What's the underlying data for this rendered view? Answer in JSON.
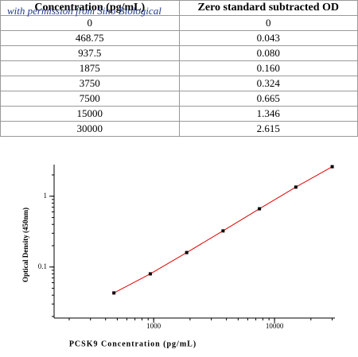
{
  "watermark": "with permission from Sino Biological",
  "table": {
    "header": [
      "Concentration (pg/mL)",
      "Zero standard subtracted OD"
    ],
    "rows": [
      [
        "0",
        "0"
      ],
      [
        "468.75",
        "0.043"
      ],
      [
        "937.5",
        "0.080"
      ],
      [
        "1875",
        "0.160"
      ],
      [
        "3750",
        "0.324"
      ],
      [
        "7500",
        "0.665"
      ],
      [
        "15000",
        "1.346"
      ],
      [
        "30000",
        "2.615"
      ]
    ]
  },
  "chart_data": {
    "type": "scatter",
    "x_label": "PCSK9 Concentration (pg/mL)",
    "y_label": "Optical Density (450nm)",
    "x": [
      468.75,
      937.5,
      1875,
      3750,
      7500,
      15000,
      30000
    ],
    "values": [
      0.043,
      0.08,
      0.16,
      0.324,
      0.665,
      1.346,
      2.615
    ],
    "color": "#000000",
    "line_color": "#e00000",
    "xlog": true,
    "ylog": true,
    "xlim": [
      150,
      31600
    ],
    "ylim": [
      0.019,
      2.8
    ],
    "xticks": [
      1000,
      10000
    ],
    "yticks": [
      0.1,
      1
    ]
  }
}
